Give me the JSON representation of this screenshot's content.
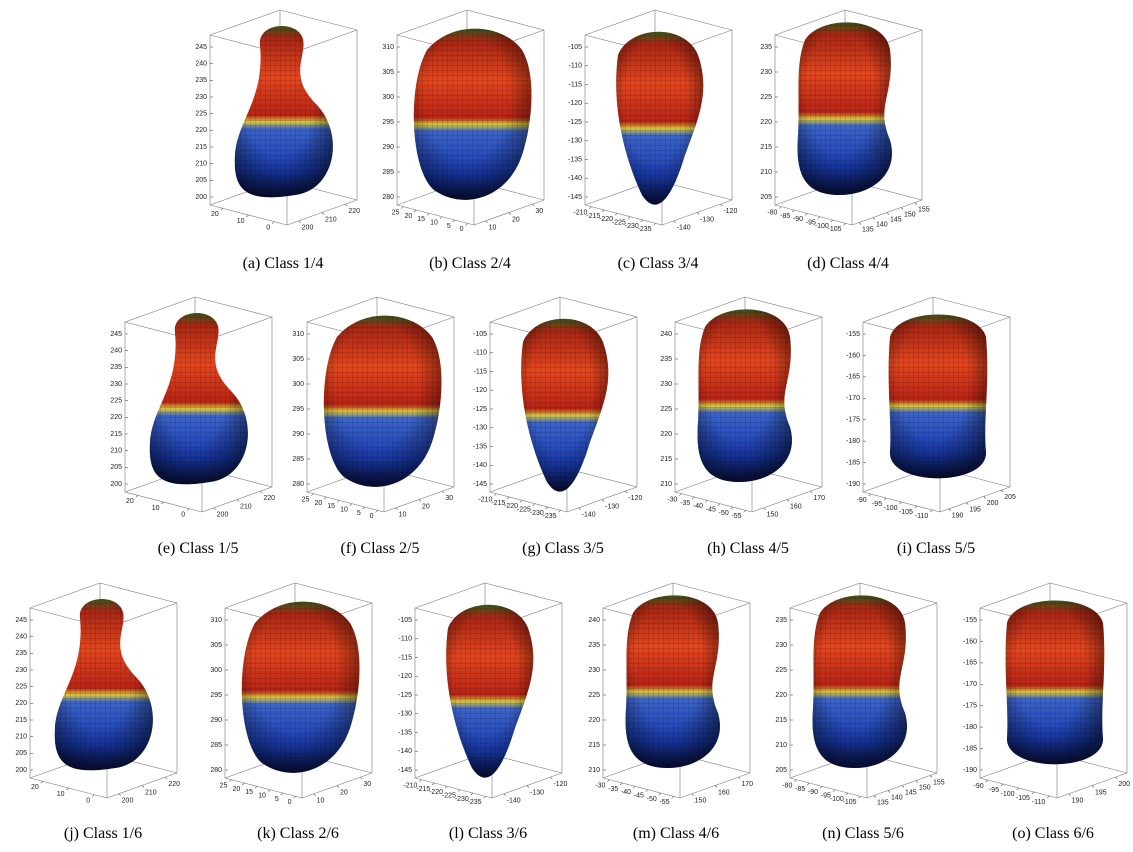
{
  "panels": [
    {
      "caption": "(a) Class 1/4",
      "z_ticks": [
        245,
        240,
        235,
        230,
        225,
        220,
        215,
        210,
        205,
        200
      ],
      "x_ticks": [
        20,
        10,
        0
      ],
      "y_ticks": [
        200,
        210,
        220
      ]
    },
    {
      "caption": "(b) Class 2/4",
      "z_ticks": [
        310,
        305,
        300,
        295,
        290,
        285,
        280
      ],
      "x_ticks": [
        25,
        20,
        15,
        10,
        5,
        0
      ],
      "y_ticks": [
        10,
        20,
        30
      ]
    },
    {
      "caption": "(c) Class 3/4",
      "z_ticks": [
        -105,
        -110,
        -115,
        -120,
        -125,
        -130,
        -135,
        -140,
        -145
      ],
      "x_ticks": [
        -210,
        -215,
        -220,
        -225,
        -230,
        -235
      ],
      "y_ticks": [
        -140,
        -130,
        -120
      ]
    },
    {
      "caption": "(d) Class 4/4",
      "z_ticks": [
        235,
        230,
        225,
        220,
        215,
        210,
        205
      ],
      "x_ticks": [
        -80,
        -85,
        -90,
        -95,
        -100,
        -105
      ],
      "y_ticks": [
        135,
        140,
        145,
        150,
        155
      ]
    },
    {
      "caption": "(e) Class 1/5",
      "z_ticks": [
        245,
        240,
        235,
        230,
        225,
        220,
        215,
        210,
        205,
        200
      ],
      "x_ticks": [
        20,
        10,
        0
      ],
      "y_ticks": [
        200,
        210,
        220
      ]
    },
    {
      "caption": "(f) Class 2/5",
      "z_ticks": [
        310,
        305,
        300,
        295,
        290,
        285,
        280
      ],
      "x_ticks": [
        25,
        20,
        15,
        10,
        5,
        0
      ],
      "y_ticks": [
        10,
        20,
        30
      ]
    },
    {
      "caption": "(g) Class 3/5",
      "z_ticks": [
        -105,
        -110,
        -115,
        -120,
        -125,
        -130,
        -135,
        -140,
        -145
      ],
      "x_ticks": [
        -210,
        -215,
        -220,
        -225,
        -230,
        -235
      ],
      "y_ticks": [
        -140,
        -130,
        -120
      ]
    },
    {
      "caption": "(h) Class 4/5",
      "z_ticks": [
        240,
        235,
        230,
        225,
        220,
        215,
        210
      ],
      "x_ticks": [
        -30,
        -35,
        -40,
        -45,
        -50,
        -55
      ],
      "y_ticks": [
        150,
        160,
        170
      ]
    },
    {
      "caption": "(i) Class 5/5",
      "z_ticks": [
        -155,
        -160,
        -165,
        -170,
        -175,
        -180,
        -185,
        -190
      ],
      "x_ticks": [
        -90,
        -95,
        -100,
        -105,
        -110
      ],
      "y_ticks": [
        190,
        195,
        200,
        205
      ]
    },
    {
      "caption": "(j) Class 1/6",
      "z_ticks": [
        245,
        240,
        235,
        230,
        225,
        220,
        215,
        210,
        205,
        200
      ],
      "x_ticks": [
        20,
        10,
        0
      ],
      "y_ticks": [
        200,
        210,
        220
      ]
    },
    {
      "caption": "(k) Class 2/6",
      "z_ticks": [
        310,
        305,
        300,
        295,
        290,
        285,
        280
      ],
      "x_ticks": [
        25,
        20,
        15,
        10,
        5,
        0
      ],
      "y_ticks": [
        10,
        20,
        30
      ]
    },
    {
      "caption": "(l) Class 3/6",
      "z_ticks": [
        -105,
        -110,
        -115,
        -120,
        -125,
        -130,
        -135,
        -140,
        -145
      ],
      "x_ticks": [
        -210,
        -215,
        -220,
        -225,
        -230,
        -235
      ],
      "y_ticks": [
        -140,
        -130,
        -120
      ]
    },
    {
      "caption": "(m) Class 4/6",
      "z_ticks": [
        240,
        235,
        230,
        225,
        220,
        215,
        210
      ],
      "x_ticks": [
        -30,
        -35,
        -40,
        -45,
        -50,
        -55
      ],
      "y_ticks": [
        150,
        160,
        170
      ]
    },
    {
      "caption": "(n) Class 5/6",
      "z_ticks": [
        235,
        230,
        225,
        220,
        215,
        210,
        205
      ],
      "x_ticks": [
        -80,
        -85,
        -90,
        -95,
        -100,
        -105
      ],
      "y_ticks": [
        135,
        140,
        145,
        150,
        155
      ]
    },
    {
      "caption": "(o) Class 6/6",
      "z_ticks": [
        -155,
        -160,
        -165,
        -170,
        -175,
        -180,
        -185,
        -190
      ],
      "x_ticks": [
        -90,
        -95,
        -100,
        -105,
        -110
      ],
      "y_ticks": [
        190,
        195,
        200
      ]
    }
  ]
}
